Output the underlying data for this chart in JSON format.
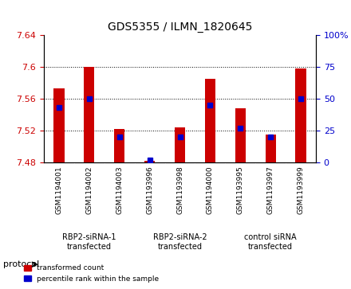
{
  "title": "GDS5355 / ILMN_1820645",
  "samples": [
    "GSM1194001",
    "GSM1194002",
    "GSM1194003",
    "GSM1193996",
    "GSM1193998",
    "GSM1194000",
    "GSM1193995",
    "GSM1193997",
    "GSM1193999"
  ],
  "red_values": [
    7.573,
    7.6,
    7.522,
    7.482,
    7.524,
    7.585,
    7.548,
    7.515,
    7.598
  ],
  "blue_values": [
    43,
    50,
    20,
    2,
    20,
    45,
    27,
    20,
    50
  ],
  "ylim_left": [
    7.48,
    7.64
  ],
  "ylim_right": [
    0,
    100
  ],
  "yticks_left": [
    7.48,
    7.52,
    7.56,
    7.6,
    7.64
  ],
  "yticks_right": [
    0,
    25,
    50,
    75,
    100
  ],
  "ytick_labels_right": [
    "0",
    "25",
    "50",
    "75",
    "100%"
  ],
  "groups": [
    {
      "label": "RBP2-siRNA-1\ntransfected",
      "start": 0,
      "end": 3,
      "color": "#90ee90"
    },
    {
      "label": "RBP2-siRNA-2\ntransfected",
      "start": 3,
      "end": 6,
      "color": "#90ee90"
    },
    {
      "label": "control siRNA\ntransfected",
      "start": 6,
      "end": 9,
      "color": "#90ee90"
    }
  ],
  "bar_color": "#cc0000",
  "dot_color": "#0000cc",
  "base_value": 7.48,
  "bar_width": 0.35,
  "legend_items": [
    {
      "color": "#cc0000",
      "label": "transformed count"
    },
    {
      "color": "#0000cc",
      "label": "percentile rank within the sample"
    }
  ],
  "protocol_label": "protocol",
  "background_color": "#ffffff",
  "plot_bg_color": "#ffffff",
  "tick_label_area_color": "#d3d3d3",
  "group_area_color": "#90ee90"
}
